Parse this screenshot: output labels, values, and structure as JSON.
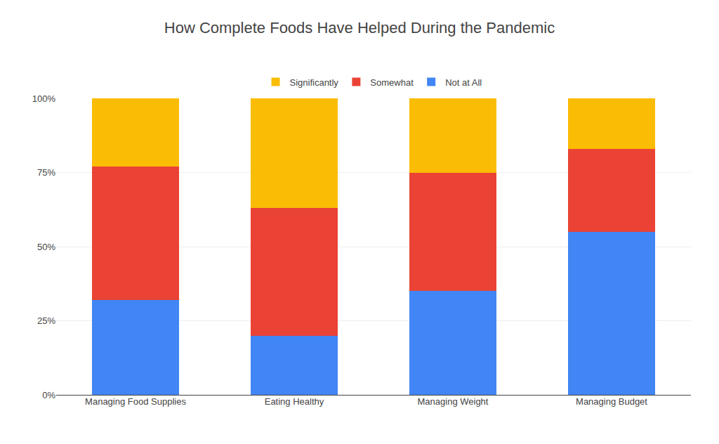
{
  "chart_data": {
    "type": "bar",
    "stacked": true,
    "title": "How Complete Foods Have Helped During the Pandemic",
    "categories": [
      "Managing Food Supplies",
      "Eating Healthy",
      "Managing Weight",
      "Managing Budget"
    ],
    "series": [
      {
        "name": "Not at All",
        "color": "#4285F4",
        "values": [
          32,
          20,
          35,
          55
        ]
      },
      {
        "name": "Somewhat",
        "color": "#EA4335",
        "values": [
          45,
          43,
          40,
          28
        ]
      },
      {
        "name": "Significantly",
        "color": "#FBBC05",
        "values": [
          23,
          37,
          25,
          17
        ]
      }
    ],
    "ylim": [
      0,
      100
    ],
    "yticks": [
      {
        "value": 0,
        "label": "0%"
      },
      {
        "value": 25,
        "label": "25%"
      },
      {
        "value": 50,
        "label": "50%"
      },
      {
        "value": 75,
        "label": "75%"
      },
      {
        "value": 100,
        "label": "100%"
      }
    ],
    "grid": true,
    "legend": "top"
  }
}
